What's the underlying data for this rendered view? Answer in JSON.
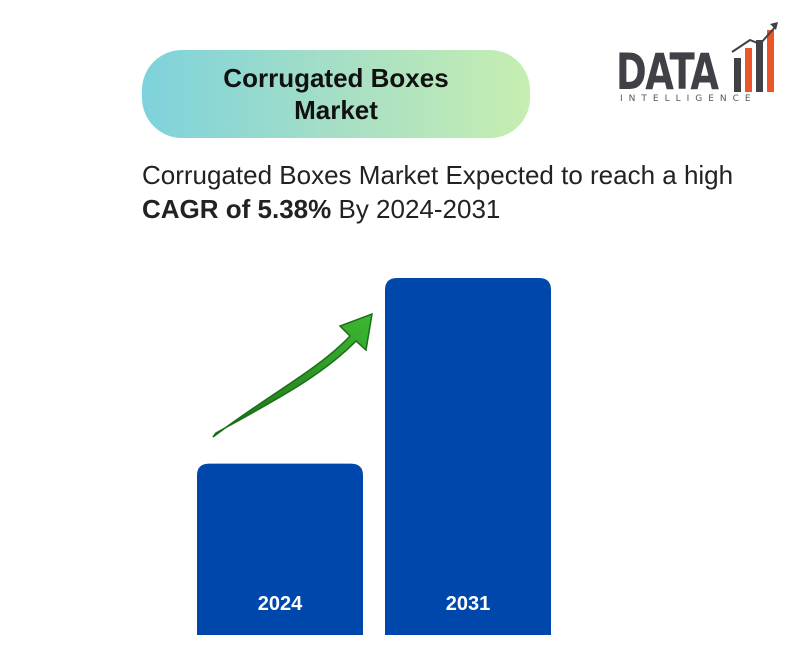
{
  "title": "Corrugated Boxes Market",
  "logo": {
    "word": "DATA",
    "tagline": "INTELLIGENCE"
  },
  "subtitle": {
    "prefix": "Corrugated Boxes Market Expected to reach a high ",
    "highlight": "CAGR of 5.38%",
    "suffix": " By 2024-2031"
  },
  "colors": {
    "bar": "#0047ab",
    "arrow": "#2e9e24",
    "arrow_dark": "#1c6e18",
    "bar_label": "#ffffff",
    "logo_bar_red": "#e8562a",
    "logo_bar_grey": "#3f4147"
  },
  "chart_data": {
    "type": "bar",
    "categories": [
      "2024",
      "2031"
    ],
    "values": [
      48,
      100
    ],
    "value_note": "relative bar heights, no values printed",
    "trend_arrow": "upward, from first bar toward second bar"
  }
}
